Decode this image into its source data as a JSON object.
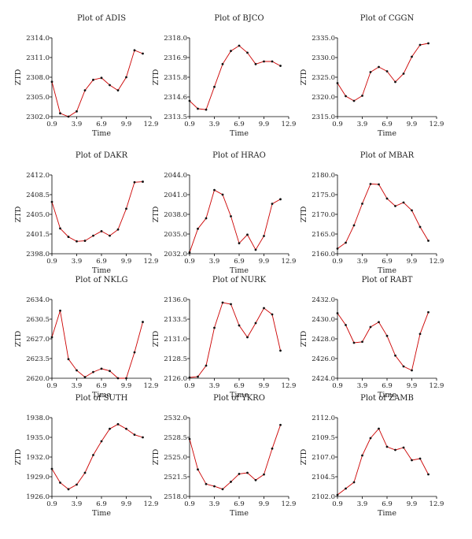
{
  "chart_data": [
    {
      "type": "line",
      "title": "Plot of ADIS",
      "xlabel": "Time",
      "ylabel": "ZTD",
      "xlim": [
        0.9,
        12.9
      ],
      "xticks": [
        "0.9",
        "3.9",
        "6.9",
        "9.9",
        "12.9"
      ],
      "ylim": [
        2302.0,
        2314.0
      ],
      "yticks": [
        "2302.0",
        "2305.0",
        "2308.0",
        "2311.0",
        "2314.0"
      ],
      "x": [
        0.9,
        1.9,
        2.9,
        3.9,
        4.9,
        5.9,
        6.9,
        7.9,
        8.9,
        9.9,
        10.9,
        11.9
      ],
      "y": [
        2307.3,
        2302.5,
        2302.0,
        2302.8,
        2306.0,
        2307.6,
        2307.9,
        2306.8,
        2306.0,
        2308.0,
        2312.1,
        2311.6
      ],
      "series_color": "#cc0000"
    },
    {
      "type": "line",
      "title": "Plot of BJCO",
      "xlabel": "Time",
      "ylabel": "ZTD",
      "xlim": [
        0.9,
        12.9
      ],
      "xticks": [
        "0.9",
        "3.9",
        "6.9",
        "9.9",
        "12.9"
      ],
      "ylim": [
        2313.5,
        2318.0
      ],
      "yticks": [
        "2313.5",
        "2314.6",
        "2315.8",
        "2316.9",
        "2318.0"
      ],
      "x": [
        0.9,
        1.9,
        2.9,
        3.9,
        4.9,
        5.9,
        6.9,
        7.9,
        8.9,
        9.9,
        10.9,
        11.9
      ],
      "y": [
        2314.4,
        2313.95,
        2313.9,
        2315.2,
        2316.5,
        2317.25,
        2317.55,
        2317.15,
        2316.5,
        2316.65,
        2316.65,
        2316.4
      ],
      "series_color": "#cc0000"
    },
    {
      "type": "line",
      "title": "Plot of CGGN",
      "xlabel": "Time",
      "ylabel": "ZTD",
      "xlim": [
        0.9,
        12.9
      ],
      "xticks": [
        "0.9",
        "3.9",
        "6.9",
        "9.9",
        "12.9"
      ],
      "ylim": [
        2315.0,
        2335.0
      ],
      "yticks": [
        "2315.0",
        "2320.0",
        "2325.0",
        "2330.0",
        "2335.0"
      ],
      "x": [
        0.9,
        1.9,
        2.9,
        3.9,
        4.9,
        5.9,
        6.9,
        7.9,
        8.9,
        9.9,
        10.9,
        11.9
      ],
      "y": [
        2323.5,
        2320.2,
        2319.0,
        2320.3,
        2326.3,
        2327.6,
        2326.5,
        2323.8,
        2325.9,
        2330.2,
        2333.2,
        2333.6
      ],
      "series_color": "#cc0000"
    },
    {
      "type": "line",
      "title": "Plot of DAKR",
      "xlabel": "Time",
      "ylabel": "ZTD",
      "xlim": [
        0.9,
        12.9
      ],
      "xticks": [
        "0.9",
        "3.9",
        "6.9",
        "9.9",
        "12.9"
      ],
      "ylim": [
        2398.0,
        2412.0
      ],
      "yticks": [
        "2398.0",
        "2401.5",
        "2405.0",
        "2408.5",
        "2412.0"
      ],
      "x": [
        0.9,
        1.9,
        2.9,
        3.9,
        4.9,
        5.9,
        6.9,
        7.9,
        8.9,
        9.9,
        10.9,
        11.9
      ],
      "y": [
        2407.2,
        2402.5,
        2401.0,
        2400.2,
        2400.3,
        2401.2,
        2402.0,
        2401.2,
        2402.3,
        2406.0,
        2410.7,
        2410.8
      ],
      "series_color": "#cc0000"
    },
    {
      "type": "line",
      "title": "Plot of HRAO",
      "xlabel": "Time",
      "ylabel": "ZTD",
      "xlim": [
        0.9,
        12.9
      ],
      "xticks": [
        "0.9",
        "3.9",
        "6.9",
        "9.9",
        "12.9"
      ],
      "ylim": [
        2032.0,
        2044.0
      ],
      "yticks": [
        "2032.0",
        "2035.0",
        "2038.0",
        "2041.0",
        "2044.0"
      ],
      "x": [
        0.9,
        1.9,
        2.9,
        3.9,
        4.9,
        5.9,
        6.9,
        7.9,
        8.9,
        9.9,
        10.9,
        11.9
      ],
      "y": [
        2032.2,
        2035.8,
        2037.4,
        2041.7,
        2041.0,
        2037.7,
        2033.6,
        2034.9,
        2032.6,
        2034.7,
        2039.6,
        2040.3
      ],
      "series_color": "#cc0000"
    },
    {
      "type": "line",
      "title": "Plot of MBAR",
      "xlabel": "Time",
      "ylabel": "ZTD",
      "xlim": [
        0.9,
        12.9
      ],
      "xticks": [
        "0.9",
        "3.9",
        "6.9",
        "9.9",
        "12.9"
      ],
      "ylim": [
        2160.0,
        2180.0
      ],
      "yticks": [
        "2160.0",
        "2165.0",
        "2170.0",
        "2175.0",
        "2180.0"
      ],
      "x": [
        0.9,
        1.9,
        2.9,
        3.9,
        4.9,
        5.9,
        6.9,
        7.9,
        8.9,
        9.9,
        10.9,
        11.9
      ],
      "y": [
        2161.3,
        2162.8,
        2167.2,
        2172.7,
        2177.7,
        2177.6,
        2174.0,
        2172.1,
        2173.0,
        2171.0,
        2166.8,
        2163.3
      ],
      "series_color": "#cc0000"
    },
    {
      "type": "line",
      "title": "Plot of NKLG",
      "xlabel": "Time",
      "ylabel": "ZTD",
      "xlim": [
        0.9,
        12.9
      ],
      "xticks": [
        "0.9",
        "3.9",
        "6.9",
        "9.9",
        "12.9"
      ],
      "ylim": [
        2620.0,
        2634.0
      ],
      "yticks": [
        "2620.0",
        "2623.5",
        "2627.0",
        "2630.5",
        "2634.0"
      ],
      "x": [
        0.9,
        1.9,
        2.9,
        3.9,
        4.9,
        5.9,
        6.9,
        7.9,
        8.9,
        9.9,
        10.9,
        11.9
      ],
      "y": [
        2627.3,
        2632.0,
        2623.4,
        2621.4,
        2620.2,
        2621.1,
        2621.7,
        2621.3,
        2620.0,
        2620.0,
        2624.6,
        2630.0
      ],
      "series_color": "#cc0000"
    },
    {
      "type": "line",
      "title": "Plot of NURK",
      "xlabel": "Time",
      "ylabel": "ZTD",
      "xlim": [
        0.9,
        12.9
      ],
      "xticks": [
        "0.9",
        "3.9",
        "6.9",
        "9.9",
        "12.9"
      ],
      "ylim": [
        2126.0,
        2136.0
      ],
      "yticks": [
        "2126.0",
        "2128.5",
        "2131.0",
        "2133.5",
        "2136.0"
      ],
      "x": [
        0.9,
        1.9,
        2.9,
        3.9,
        4.9,
        5.9,
        6.9,
        7.9,
        8.9,
        9.9,
        10.9,
        11.9
      ],
      "y": [
        2126.1,
        2126.2,
        2127.6,
        2132.4,
        2135.6,
        2135.4,
        2132.7,
        2131.2,
        2133.0,
        2134.9,
        2134.1,
        2129.5
      ],
      "series_color": "#cc0000"
    },
    {
      "type": "line",
      "title": "Plot of RABT",
      "xlabel": "Time",
      "ylabel": "ZTD",
      "xlim": [
        0.9,
        12.9
      ],
      "xticks": [
        "0.9",
        "3.9",
        "6.9",
        "9.9",
        "12.9"
      ],
      "ylim": [
        2424.0,
        2432.0
      ],
      "yticks": [
        "2424.0",
        "2426.0",
        "2428.0",
        "2430.0",
        "2432.0"
      ],
      "x": [
        0.9,
        1.9,
        2.9,
        3.9,
        4.9,
        5.9,
        6.9,
        7.9,
        8.9,
        9.9,
        10.9,
        11.9
      ],
      "y": [
        2430.6,
        2429.4,
        2427.6,
        2427.7,
        2429.2,
        2429.7,
        2428.3,
        2426.3,
        2425.2,
        2424.8,
        2428.5,
        2430.7
      ],
      "series_color": "#cc0000"
    },
    {
      "type": "line",
      "title": "Plot of SUTH",
      "xlabel": "Time",
      "ylabel": "ZTD",
      "xlim": [
        0.9,
        12.9
      ],
      "xticks": [
        "0.9",
        "3.9",
        "6.9",
        "9.9",
        "12.9"
      ],
      "ylim": [
        1926.0,
        1938.0
      ],
      "yticks": [
        "1926.0",
        "1929.0",
        "1932.0",
        "1935.0",
        "1938.0"
      ],
      "x": [
        0.9,
        1.9,
        2.9,
        3.9,
        4.9,
        5.9,
        6.9,
        7.9,
        8.9,
        9.9,
        10.9,
        11.9
      ],
      "y": [
        1930.2,
        1928.1,
        1927.1,
        1927.8,
        1929.6,
        1932.3,
        1934.4,
        1936.3,
        1937.0,
        1936.3,
        1935.4,
        1935.0
      ],
      "series_color": "#cc0000"
    },
    {
      "type": "line",
      "title": "Plot of YKRO",
      "xlabel": "Time",
      "ylabel": "ZTD",
      "xlim": [
        0.9,
        12.9
      ],
      "xticks": [
        "0.9",
        "3.9",
        "6.9",
        "9.9",
        "12.9"
      ],
      "ylim": [
        2518.0,
        2532.0
      ],
      "yticks": [
        "2518.0",
        "2521.5",
        "2525.0",
        "2528.5",
        "2532.0"
      ],
      "x": [
        0.9,
        1.9,
        2.9,
        3.9,
        4.9,
        5.9,
        6.9,
        7.9,
        8.9,
        9.9,
        10.9,
        11.9
      ],
      "y": [
        2528.2,
        2522.8,
        2520.2,
        2519.8,
        2519.3,
        2520.6,
        2522.0,
        2522.2,
        2520.9,
        2521.9,
        2526.5,
        2530.7
      ],
      "series_color": "#cc0000"
    },
    {
      "type": "line",
      "title": "Plot of ZAMB",
      "xlabel": "Time",
      "ylabel": "ZTD",
      "xlim": [
        0.9,
        12.9
      ],
      "xticks": [
        "0.9",
        "3.9",
        "6.9",
        "9.9",
        "12.9"
      ],
      "ylim": [
        2102.0,
        2112.0
      ],
      "yticks": [
        "2102.0",
        "2104.5",
        "2107.0",
        "2109.5",
        "2112.0"
      ],
      "x": [
        0.9,
        1.9,
        2.9,
        3.9,
        4.9,
        5.9,
        6.9,
        7.9,
        8.9,
        9.9,
        10.9,
        11.9
      ],
      "y": [
        2102.2,
        2103.0,
        2103.8,
        2107.2,
        2109.4,
        2110.6,
        2108.3,
        2107.9,
        2108.2,
        2106.6,
        2106.8,
        2104.8
      ],
      "series_color": "#cc0000"
    }
  ]
}
